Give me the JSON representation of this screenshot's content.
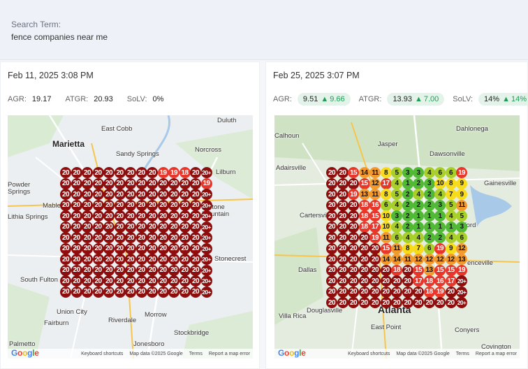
{
  "search": {
    "label": "Search Term:",
    "value": "fence companies near me"
  },
  "colors": {
    "green": "#52b936",
    "yellow": "#f7dc1e",
    "orange": "#f39a2f",
    "red": "#e8362b",
    "dark_red": "#8e0e0e"
  },
  "panels": [
    {
      "title": "Feb 11, 2025 3:08 PM",
      "agr_label": "AGR:",
      "agr": "19.17",
      "atgr_label": "ATGR:",
      "atgr": "20.93",
      "solv_label": "SoLV:",
      "solv": "0%",
      "places": [
        "East Cobb",
        "Duluth",
        "Marietta",
        "Sandy Springs",
        "Norcross",
        "Lilburn",
        "Powder",
        "Springs",
        "Mable",
        "Stone",
        "Mountain",
        "Lithia Springs",
        "Stonecrest",
        "South Fulton",
        "Union City",
        "Morrow",
        "Riverdale",
        "Fairburn",
        "Stockbridge",
        "Palmetto",
        "Jonesboro"
      ],
      "grid": [
        [
          "20",
          "20",
          "20",
          "20",
          "20",
          "20",
          "20",
          "20",
          "20",
          "19",
          "19",
          "18",
          "20",
          "20+"
        ],
        [
          "20",
          "20",
          "20",
          "20",
          "20",
          "20",
          "20",
          "20",
          "20",
          "20",
          "20",
          "20",
          "20",
          "19"
        ],
        [
          "20",
          "20",
          "20",
          "20",
          "20",
          "20",
          "20",
          "20",
          "20",
          "20",
          "20",
          "20",
          "20",
          "20+"
        ],
        [
          "20",
          "20",
          "20",
          "20",
          "20",
          "20",
          "20",
          "20",
          "20",
          "20",
          "20",
          "20",
          "20",
          "20+"
        ],
        [
          "20",
          "20",
          "20",
          "20",
          "20",
          "20",
          "20",
          "20",
          "20",
          "20",
          "20",
          "20",
          "20",
          "20+"
        ],
        [
          "20",
          "20",
          "20",
          "20",
          "20",
          "20",
          "20",
          "20",
          "20",
          "20",
          "20",
          "20",
          "20",
          "20+"
        ],
        [
          "20",
          "20",
          "20",
          "20",
          "20",
          "20",
          "20",
          "20",
          "20",
          "20",
          "20",
          "20",
          "20",
          "20+"
        ],
        [
          "20",
          "20",
          "20",
          "20",
          "20",
          "20",
          "20",
          "20",
          "20",
          "20",
          "20",
          "20",
          "20",
          "20+"
        ],
        [
          "20",
          "20",
          "20",
          "20",
          "20",
          "20",
          "20",
          "20",
          "20",
          "20",
          "20",
          "20",
          "20",
          "20+"
        ],
        [
          "20",
          "20",
          "20",
          "20",
          "20",
          "20",
          "20",
          "20",
          "20",
          "20",
          "20",
          "20",
          "20",
          "20+"
        ],
        [
          "20",
          "20",
          "20",
          "20",
          "20",
          "20",
          "20",
          "20",
          "20",
          "20",
          "20",
          "20",
          "20",
          "20+"
        ],
        [
          "20",
          "20",
          "20",
          "20",
          "20",
          "20",
          "20",
          "20",
          "20",
          "20",
          "20",
          "20",
          "20",
          "20+"
        ]
      ],
      "footer": {
        "keyboard": "Keyboard shortcuts",
        "mapdata": "Map data ©2025 Google",
        "terms": "Terms",
        "report": "Report a map error"
      }
    },
    {
      "title": "Feb 25, 2025 3:07 PM",
      "agr_label": "AGR:",
      "agr": "9.51",
      "agr_delta": "9.66",
      "atgr_label": "ATGR:",
      "atgr": "13.93",
      "atgr_delta": "7.00",
      "solv_label": "SoLV:",
      "solv": "14%",
      "solv_delta": "14%",
      "places": [
        "Dahlonega",
        "Calhoun",
        "Jasper",
        "Dawsonville",
        "Adairsville",
        "Gainesville",
        "Cartersville",
        "ford",
        "Dallas",
        "enceville",
        "Atlanta",
        "Douglasville",
        "Villa Rica",
        "East Point",
        "Conyers",
        "Covington"
      ],
      "grid": [
        [
          "20",
          "20",
          "15",
          "14",
          "11",
          "8",
          "5",
          "3",
          "3",
          "4",
          "6",
          "6",
          "19"
        ],
        [
          "20",
          "20",
          "20",
          "15",
          "12",
          "17",
          "4",
          "1",
          "2",
          "3",
          "10",
          "8",
          "9"
        ],
        [
          "20",
          "20",
          "19",
          "13",
          "11",
          "8",
          "5",
          "2",
          "4",
          "2",
          "4",
          "7",
          "9"
        ],
        [
          "20",
          "20",
          "20",
          "18",
          "16",
          "6",
          "4",
          "2",
          "2",
          "2",
          "3",
          "5",
          "11"
        ],
        [
          "20",
          "20",
          "20",
          "18",
          "15",
          "10",
          "3",
          "2",
          "1",
          "1",
          "1",
          "4",
          "5"
        ],
        [
          "20",
          "20",
          "20",
          "18",
          "17",
          "10",
          "4",
          "2",
          "1",
          "1",
          "1",
          "1",
          "3"
        ],
        [
          "20",
          "20",
          "20",
          "20",
          "19",
          "11",
          "6",
          "4",
          "4",
          "2",
          "2",
          "4",
          "6"
        ],
        [
          "20",
          "20",
          "20",
          "20",
          "20",
          "15",
          "11",
          "8",
          "7",
          "6",
          "19",
          "9",
          "12"
        ],
        [
          "20",
          "20",
          "20",
          "20",
          "20",
          "14",
          "14",
          "11",
          "12",
          "12",
          "12",
          "12",
          "13"
        ],
        [
          "20",
          "20",
          "20",
          "20",
          "20",
          "20",
          "18",
          "20",
          "15",
          "13",
          "15",
          "15",
          "19"
        ],
        [
          "20",
          "20",
          "20",
          "20",
          "20",
          "20",
          "20",
          "20",
          "17",
          "18",
          "16",
          "17",
          "20+"
        ],
        [
          "20",
          "20",
          "20",
          "20",
          "20",
          "20",
          "20",
          "20",
          "20",
          "18",
          "19",
          "20",
          "20+"
        ],
        [
          "20",
          "20",
          "20",
          "20",
          "20",
          "20",
          "20",
          "20",
          "20",
          "20",
          "20",
          "20",
          "20+"
        ]
      ],
      "footer": {
        "keyboard": "Keyboard shortcuts",
        "mapdata": "Map data ©2025 Google",
        "terms": "Terms",
        "report": "Report a map error"
      }
    }
  ]
}
